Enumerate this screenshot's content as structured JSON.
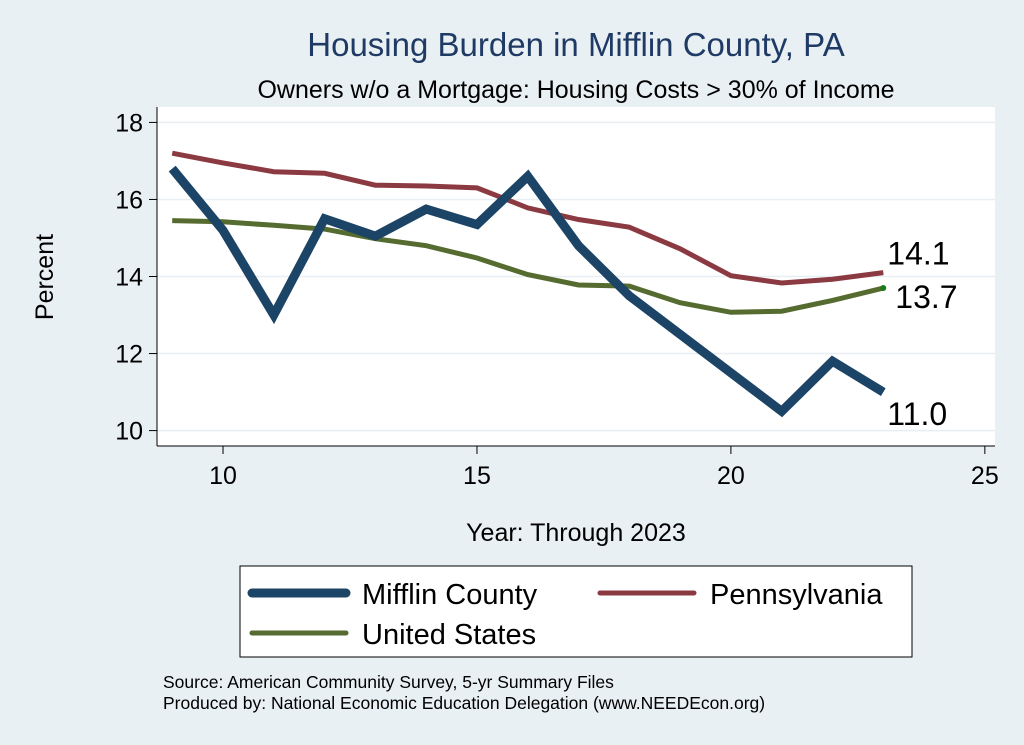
{
  "chart_data": {
    "type": "line",
    "title": "Housing Burden in Mifflin County, PA",
    "subtitle": "Owners w/o a Mortgage: Housing Costs > 30% of Income",
    "xlabel": "Year: Through 2023",
    "ylabel": "Percent",
    "xlim": [
      8.7,
      25.2
    ],
    "ylim": [
      9.6,
      18.4
    ],
    "xticks": [
      10,
      15,
      20,
      25
    ],
    "yticks": [
      10,
      12,
      14,
      16,
      18
    ],
    "grid": true,
    "legend_position": "bottom",
    "series": [
      {
        "name": "Mifflin County",
        "color": "#1c4466",
        "x": [
          9,
          10,
          11,
          12,
          13,
          14,
          15,
          16,
          17,
          18,
          19,
          20,
          21,
          22,
          23
        ],
        "values": [
          16.8,
          15.2,
          13.0,
          15.5,
          15.05,
          15.75,
          15.35,
          16.6,
          14.8,
          13.5,
          12.5,
          11.5,
          10.5,
          11.8,
          11.0
        ]
      },
      {
        "name": "Pennsylvania",
        "color": "#8b3a42",
        "x": [
          9,
          10,
          11,
          12,
          13,
          14,
          15,
          16,
          17,
          18,
          19,
          20,
          21,
          22,
          23
        ],
        "values": [
          17.2,
          16.95,
          16.72,
          16.68,
          16.37,
          16.35,
          16.3,
          15.78,
          15.48,
          15.28,
          14.72,
          14.02,
          13.83,
          13.93,
          14.1
        ]
      },
      {
        "name": "United States",
        "color": "#556b2f",
        "x": [
          9,
          10,
          11,
          12,
          13,
          14,
          15,
          16,
          17,
          18,
          19,
          20,
          21,
          22,
          23
        ],
        "values": [
          15.45,
          15.42,
          15.33,
          15.23,
          14.98,
          14.8,
          14.48,
          14.05,
          13.78,
          13.75,
          13.32,
          13.07,
          13.1,
          13.38,
          13.7
        ]
      }
    ],
    "end_labels": [
      {
        "series": "Pennsylvania",
        "text": "14.1"
      },
      {
        "series": "United States",
        "text": "13.7"
      },
      {
        "series": "Mifflin County",
        "text": "11.0"
      }
    ]
  },
  "notes": {
    "source": "Source: American Community Survey, 5-yr Summary Files",
    "produced_by": "Produced by: National Economic Education Delegation (www.NEEDEcon.org)"
  }
}
